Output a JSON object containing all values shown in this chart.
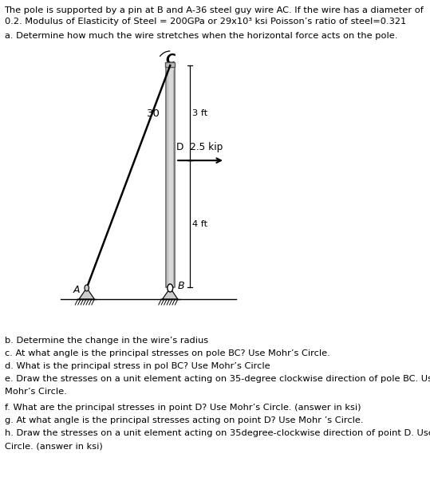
{
  "title_line1": "The pole is supported by a pin at B and A-36 steel guy wire AC. If the wire has a diameter of",
  "title_line2": "0.2. Modulus of Elasticity of Steel = 200GPa or 29x10³ ksi Poisson’s ratio of steel=0.321",
  "part_a": "a. Determine how much the wire stretches when the horizontal force acts on the pole.",
  "part_b": "b. Determine the change in the wire’s radius",
  "part_c": "c. At what angle is the principal stresses on pole BC? Use Mohr’s Circle.",
  "part_d": "d. What is the principal stress in pol BC? Use Mohr’s Circle",
  "part_e_1": "e. Draw the stresses on a unit element acting on 35-degree clockwise direction of pole BC. Use",
  "part_e_2": "Mohr’s Circle.",
  "part_f": "f. What are the principal stresses in point D? Use Mohr’s Circle. (answer in ksi)",
  "part_g": "g. At what angle is the principal stresses acting on point D? Use Mohr ’s Circle.",
  "part_h_1": "h. Draw the stresses on a unit element acting on 35degree-clockwise direction of point D. Use Mohr’s",
  "part_h_2": "Circle. (answer in ksi)",
  "label_C": "C",
  "label_A": "A",
  "label_B": "B",
  "label_D": "D  2.5 kip",
  "label_3ft": "3 ft",
  "label_4ft": "4 ft",
  "label_angle": "30",
  "bg_color": "#ffffff",
  "text_color": "#000000",
  "line_color": "#000000",
  "font_size_body": 8.2,
  "font_size_label": 9.5
}
